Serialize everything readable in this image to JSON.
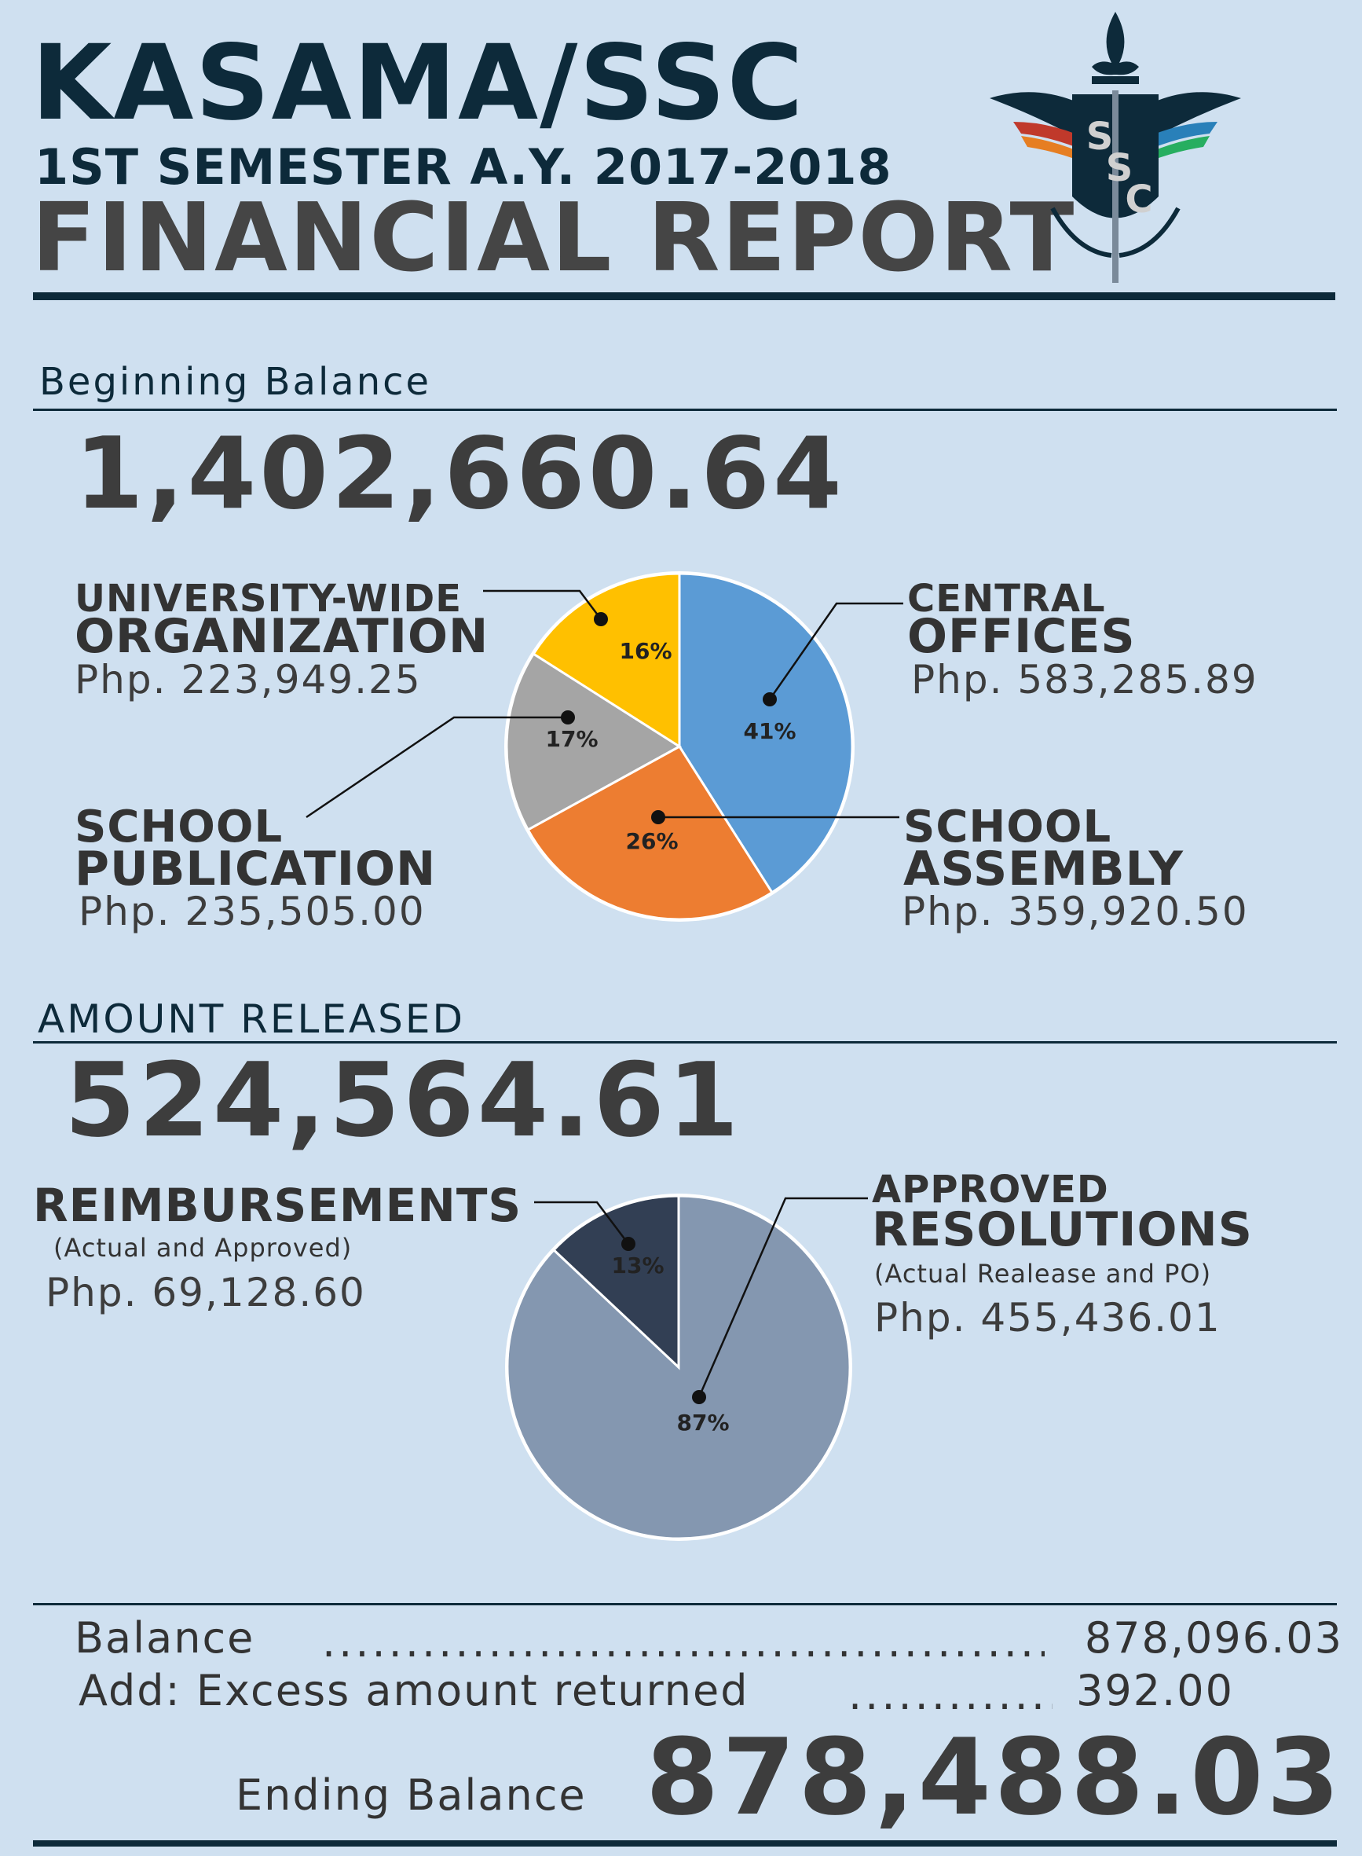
{
  "header": {
    "title": "KASAMA/SSC",
    "subtitle": "1ST SEMESTER A.Y. 2017-2018",
    "report_title": "FINANCIAL REPORT",
    "logo_text": "SSC",
    "logo_letters": [
      "S",
      "S",
      "C"
    ]
  },
  "beginning": {
    "label": "Beginning Balance",
    "amount": "1,402,660.64"
  },
  "released": {
    "label": "AMOUNT RELEASED",
    "amount": "524,564.61"
  },
  "categories": {
    "uwo": {
      "line1": "UNIVERSITY-WIDE",
      "line2": "ORGANIZATION",
      "amount": "Php. 223,949.25"
    },
    "central": {
      "line1": "CENTRAL",
      "line2": "OFFICES",
      "amount": "Php. 583,285.89"
    },
    "publication": {
      "line1": "SCHOOL",
      "line2": "PUBLICATION",
      "amount": "Php. 235,505.00"
    },
    "assembly": {
      "line1": "SCHOOL",
      "line2": "ASSEMBLY",
      "amount": "Php. 359,920.50"
    },
    "reimb": {
      "line1": "REIMBURSEMENTS",
      "sub": "(Actual and Approved)",
      "amount": "Php. 69,128.60"
    },
    "approved": {
      "line1": "APPROVED",
      "line2": "RESOLUTIONS",
      "sub": "(Actual Realease and PO)",
      "amount": "Php. 455,436.01"
    }
  },
  "summary": {
    "balance_label": "Balance",
    "balance_value": "878,096.03",
    "excess_label": "Add: Excess amount returned",
    "excess_value": "392.00",
    "ending_label": "Ending Balance",
    "ending_value": "878,488.03"
  },
  "colors": {
    "navy": "#0d2a3a",
    "central": "#5b9bd5",
    "assembly": "#ed7d31",
    "publication": "#a5a5a5",
    "uwo": "#ffc000",
    "reimb": "#323f54",
    "approved": "#8497b0"
  },
  "chart_data": [
    {
      "type": "pie",
      "slices": [
        {
          "name": "CENTRAL OFFICES",
          "value": 41,
          "label": "41%",
          "color": "#5b9bd5"
        },
        {
          "name": "SCHOOL ASSEMBLY",
          "value": 26,
          "label": "26%",
          "color": "#ed7d31"
        },
        {
          "name": "SCHOOL PUBLICATION",
          "value": 17,
          "label": "17%",
          "color": "#a5a5a5"
        },
        {
          "name": "UNIVERSITY-WIDE ORGANIZATION",
          "value": 16,
          "label": "16%",
          "color": "#ffc000"
        }
      ]
    },
    {
      "type": "pie",
      "slices": [
        {
          "name": "APPROVED RESOLUTIONS",
          "value": 87,
          "label": "87%",
          "color": "#8497b0"
        },
        {
          "name": "REIMBURSEMENTS",
          "value": 13,
          "label": "13%",
          "color": "#323f54"
        }
      ]
    }
  ]
}
